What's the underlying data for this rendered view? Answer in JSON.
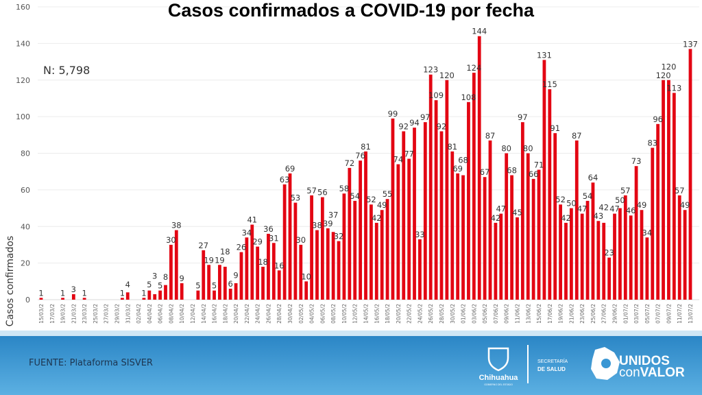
{
  "chart_data": {
    "type": "bar",
    "title": "Casos confirmados a COVID-19 por fecha",
    "ylabel": "Casos confirmados",
    "xlabel": "",
    "ylim": [
      0,
      160
    ],
    "yticks": [
      0,
      20,
      40,
      60,
      80,
      100,
      120,
      140,
      160
    ],
    "grid": true,
    "annotation": "N: 5,798",
    "bar_color": "#e30613",
    "first_date": "15/03",
    "last_date": "13/07",
    "tick_labels": [
      "15/03/2",
      "17/03/2",
      "19/03/2",
      "21/03/2",
      "23/03/2",
      "25/03/2",
      "27/03/2",
      "29/03/2",
      "31/03/2",
      "02/04/2",
      "04/04/2",
      "06/04/2",
      "08/04/2",
      "10/04/2",
      "12/04/2",
      "14/04/2",
      "16/04/2",
      "18/04/2",
      "20/04/2",
      "22/04/2",
      "24/04/2",
      "26/04/2",
      "28/04/2",
      "30/04/2",
      "02/05/2",
      "04/05/2",
      "06/05/2",
      "08/05/2",
      "10/05/2",
      "12/05/2",
      "14/05/2",
      "16/05/2",
      "18/05/2",
      "20/05/2",
      "22/05/2",
      "24/05/2",
      "26/05/2",
      "28/05/2",
      "30/05/2",
      "01/06/2",
      "03/06/2",
      "05/06/2",
      "07/06/2",
      "09/06/2",
      "11/06/2",
      "13/06/2",
      "15/06/2",
      "17/06/2",
      "19/06/2",
      "21/06/2",
      "23/06/2",
      "25/06/2",
      "27/06/2",
      "29/06/2",
      "01/07/2",
      "03/07/2",
      "05/07/2",
      "07/07/2",
      "09/07/2",
      "11/07/2",
      "13/07/2"
    ],
    "values": [
      1,
      0,
      0,
      0,
      1,
      0,
      3,
      0,
      1,
      0,
      0,
      0,
      0,
      0,
      0,
      1,
      4,
      0,
      0,
      1,
      5,
      3,
      5,
      8,
      30,
      38,
      9,
      0,
      0,
      5,
      27,
      19,
      5,
      19,
      18,
      6,
      9,
      26,
      34,
      41,
      29,
      18,
      36,
      31,
      16,
      63,
      69,
      53,
      30,
      10,
      57,
      38,
      56,
      39,
      37,
      32,
      58,
      72,
      54,
      76,
      81,
      52,
      42,
      49,
      55,
      99,
      74,
      92,
      77,
      94,
      33,
      97,
      123,
      109,
      92,
      120,
      81,
      69,
      68,
      108,
      124,
      144,
      67,
      87,
      42,
      47,
      80,
      68,
      45,
      97,
      80,
      66,
      71,
      131,
      115,
      91,
      52,
      42,
      50,
      87,
      47,
      54,
      64,
      43,
      42,
      23,
      47,
      50,
      57,
      46,
      73,
      49,
      34,
      83,
      96,
      120,
      120,
      113,
      57,
      49,
      137
    ]
  },
  "footer": {
    "source": "FUENTE: Plataforma SISVER",
    "band_color": "#2f8fd0",
    "logo_state": "Chihuahua",
    "logo_state_sub": "GOBIERNO DEL ESTADO",
    "logo_dept_line1": "SECRETARÍA",
    "logo_dept_line2": "DE SALUD",
    "logo_campaign_line1": "UNIDOS",
    "logo_campaign_line2a": "con",
    "logo_campaign_line2b": "VALOR"
  }
}
